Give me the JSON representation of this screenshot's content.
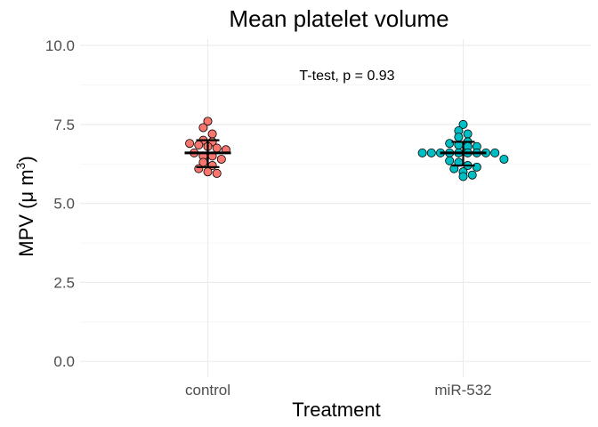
{
  "chart_data": {
    "type": "scatter",
    "title": "Mean platelet volume",
    "xlabel": "Treatment",
    "ylabel_prefix": "MPV (",
    "ylabel_unit": "μ m",
    "ylabel_sup": "3",
    "ylabel_suffix": ")",
    "ylim": [
      -0.5,
      10.2
    ],
    "y_ticks": [
      "0.0",
      "2.5",
      "5.0",
      "7.5",
      "10.0"
    ],
    "y_tick_values": [
      0,
      2.5,
      5,
      7.5,
      10
    ],
    "grid": true,
    "legend": "none",
    "annotation": "T-test, p = 0.93",
    "categories": [
      "control",
      "miR-532"
    ],
    "series": [
      {
        "color": "#f8766d",
        "mean": 6.6,
        "sd_low": 6.15,
        "sd_high": 7.0,
        "values": [
          7.6,
          7.4,
          7.2,
          7.0,
          6.95,
          6.9,
          6.85,
          6.8,
          6.75,
          6.7,
          6.6,
          6.5,
          6.5,
          6.4,
          6.3,
          6.2,
          6.1,
          6.0,
          5.95
        ]
      },
      {
        "color": "#00bfc4",
        "mean": 6.6,
        "sd_low": 6.2,
        "sd_high": 6.95,
        "values": [
          7.5,
          7.3,
          7.2,
          7.1,
          6.95,
          6.9,
          6.85,
          6.8,
          6.8,
          6.6,
          6.6,
          6.6,
          6.6,
          6.6,
          6.6,
          6.6,
          6.6,
          6.6,
          6.4,
          6.35,
          6.3,
          6.2,
          6.15,
          6.1,
          6.0,
          5.9,
          5.85
        ]
      }
    ]
  }
}
